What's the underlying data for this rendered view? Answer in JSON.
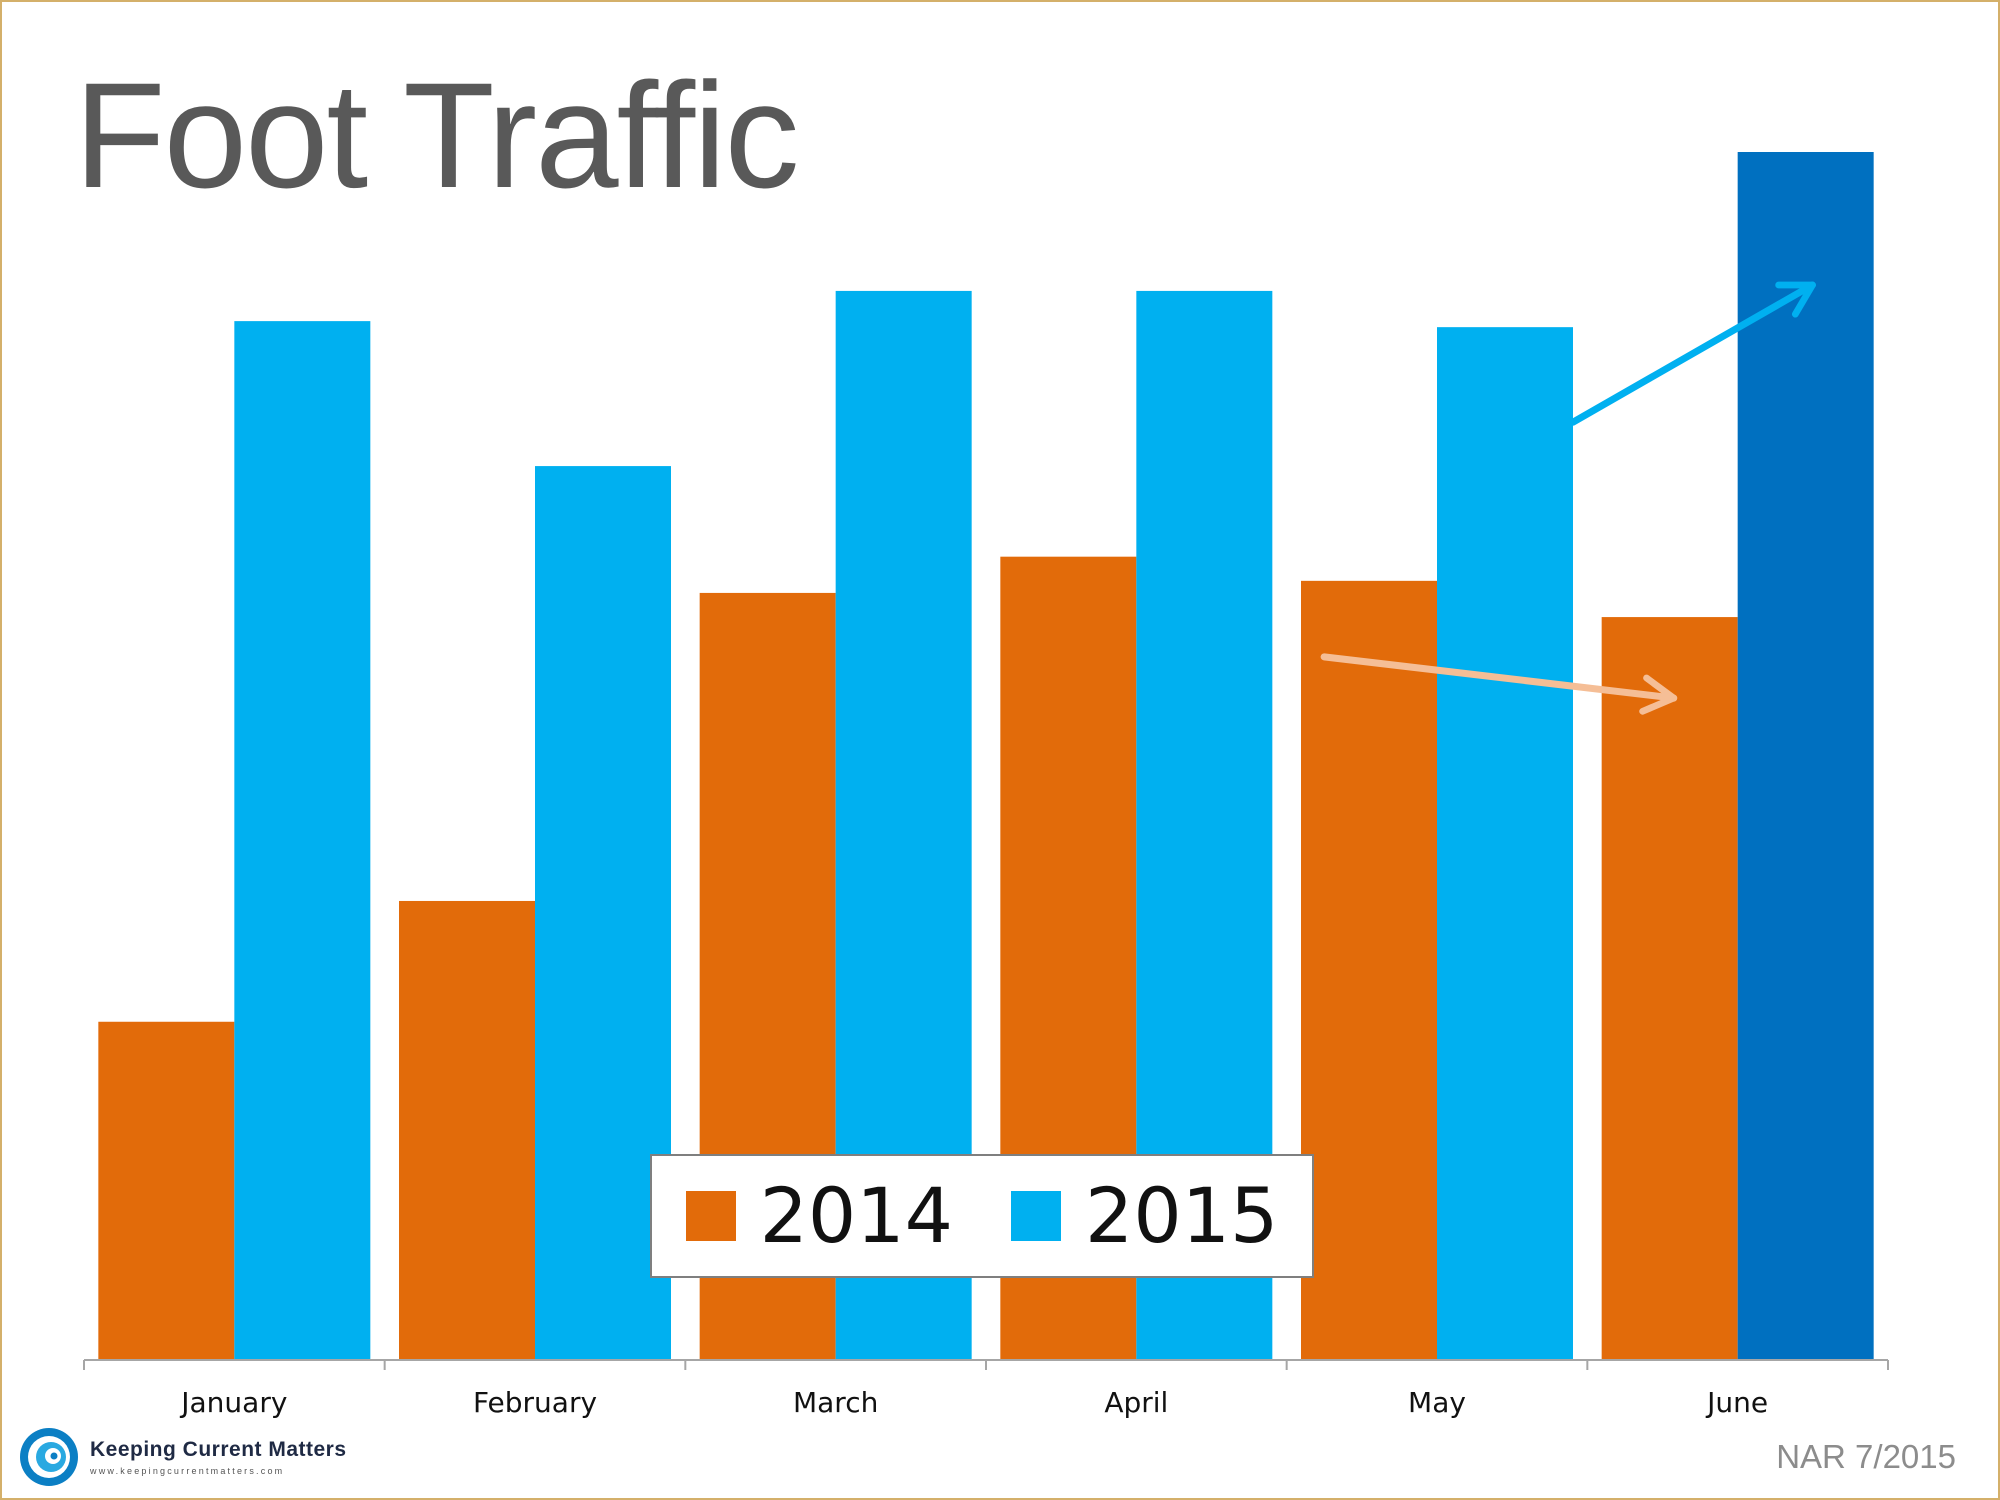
{
  "title": "Foot Traffic",
  "source": "NAR 7/2015",
  "logo": {
    "name": "Keeping Current Matters",
    "url": "www.keepingcurrentmatters.com"
  },
  "colors": {
    "series_2014": "#e26b0a",
    "series_2015": "#00b0f0",
    "highlight_2015": "#0070c0",
    "arrow_2015": "#00b0f0",
    "arrow_2014": "#f5be96",
    "axis": "#a6a6a6"
  },
  "chart_data": {
    "type": "bar",
    "title": "Foot Traffic",
    "xlabel": "",
    "ylabel": "",
    "ylim": [
      0,
      100
    ],
    "grid": false,
    "legend": "bottom-center",
    "categories": [
      "January",
      "February",
      "March",
      "April",
      "May",
      "June"
    ],
    "series": [
      {
        "name": "2014",
        "values": [
          28,
          38,
          63.5,
          66.5,
          64.5,
          61.5
        ]
      },
      {
        "name": "2015",
        "values": [
          86,
          74,
          88.5,
          88.5,
          85.5,
          100
        ]
      }
    ],
    "highlight": {
      "series": "2015",
      "category": "June"
    },
    "annotations": [
      {
        "type": "arrow",
        "series": "2015",
        "from": "May",
        "to": "June",
        "direction": "up"
      },
      {
        "type": "arrow",
        "series": "2014",
        "from": "May",
        "to": "June",
        "direction": "down"
      }
    ]
  }
}
